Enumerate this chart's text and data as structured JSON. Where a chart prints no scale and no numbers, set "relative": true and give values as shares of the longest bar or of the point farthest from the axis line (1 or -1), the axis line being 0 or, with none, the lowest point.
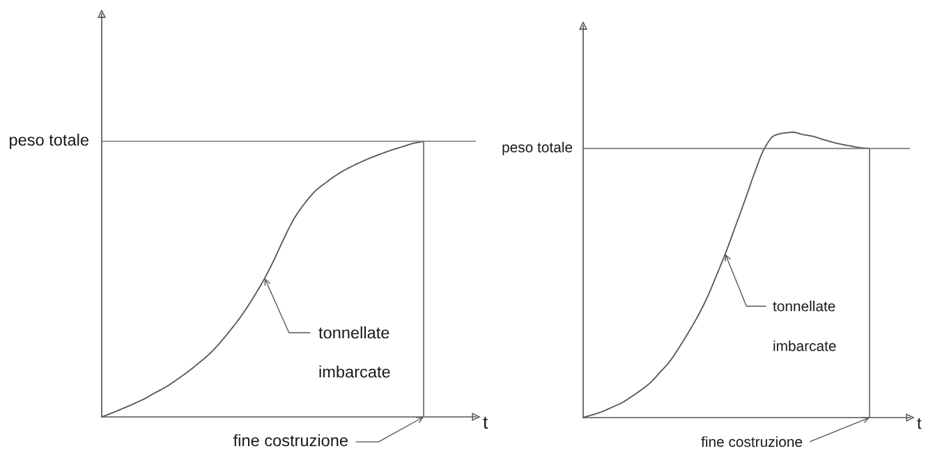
{
  "chart_data": [
    {
      "type": "line",
      "relative": true,
      "xlabel": "t",
      "categories": [
        null,
        null,
        null,
        null,
        null,
        null,
        null,
        null,
        null,
        null,
        null,
        null,
        null,
        null,
        null,
        null,
        null,
        null,
        null,
        null,
        null,
        null,
        null,
        null,
        null,
        null,
        null,
        null,
        null,
        null,
        null
      ],
      "series": [
        {
          "color": "#555555",
          "values": [
            0,
            0.015,
            0.031,
            0.048,
            0.066,
            0.088,
            0.109,
            0.135,
            0.163,
            0.194,
            0.227,
            0.268,
            0.315,
            0.366,
            0.425,
            0.49,
            0.565,
            0.649,
            0.724,
            0.779,
            0.823,
            0.853,
            0.881,
            0.903,
            0.922,
            0.939,
            0.954,
            0.968,
            0.98,
            0.992,
            1
          ]
        }
      ],
      "ref_lines": [
        {
          "axis": "y",
          "value": 1,
          "label": "peso totale",
          "color": "#777777"
        }
      ],
      "annotations": [
        "tonnellate imbarcate",
        "fine costruzione"
      ]
    },
    {
      "type": "line",
      "relative": true,
      "xlabel": "t",
      "categories": [
        null,
        null,
        null,
        null,
        null,
        null,
        null,
        null,
        null,
        null,
        null,
        null,
        null,
        null,
        null,
        null,
        null,
        null,
        null,
        null,
        null,
        null,
        null,
        null,
        null,
        null,
        null,
        null,
        null,
        null,
        null
      ],
      "series": [
        {
          "color": "#555555",
          "values": [
            0,
            0.01,
            0.021,
            0.036,
            0.051,
            0.072,
            0.095,
            0.121,
            0.157,
            0.194,
            0.243,
            0.297,
            0.355,
            0.422,
            0.501,
            0.584,
            0.675,
            0.767,
            0.862,
            0.944,
            0.988,
            0.997,
            1,
            0.992,
            0.986,
            0.976,
            0.966,
            0.958,
            0.952,
            0.946,
            0.943
          ]
        }
      ],
      "ref_lines": [
        {
          "axis": "y",
          "value": 0.943,
          "label": "peso totale",
          "color": "#777777"
        }
      ],
      "annotations": [
        "tonnellate imbarcate",
        "fine costruzione"
      ]
    }
  ]
}
